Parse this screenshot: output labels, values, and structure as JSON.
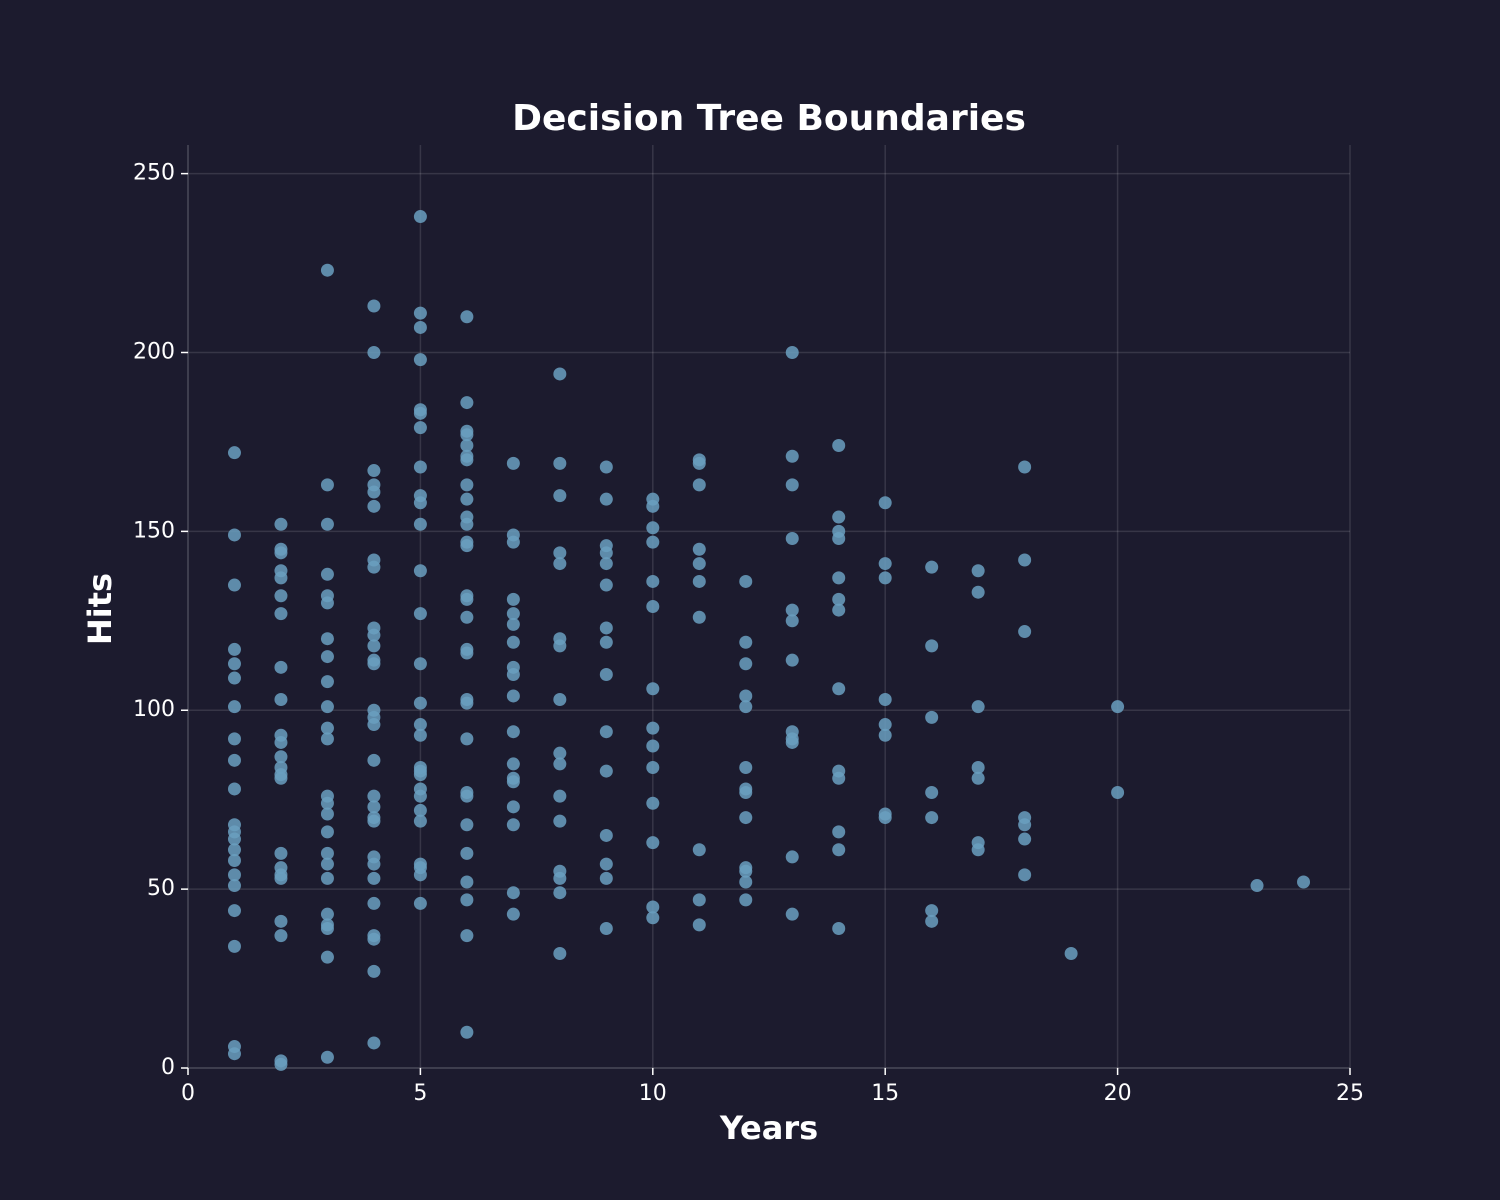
{
  "chart_data": {
    "type": "scatter",
    "title": "Decision Tree Boundaries",
    "x_label": "Years",
    "y_label": "Hits",
    "xlim": [
      0,
      25
    ],
    "ylim": [
      0,
      258
    ],
    "xticks": [
      0,
      5,
      10,
      15,
      20,
      25
    ],
    "yticks": [
      0,
      50,
      100,
      150,
      200,
      250
    ],
    "grid": true,
    "color": "#6a9fc0",
    "x": [
      1,
      1,
      1,
      1,
      1,
      1,
      1,
      1,
      1,
      1,
      1,
      1,
      1,
      1,
      1,
      1,
      1,
      1,
      1,
      1,
      1,
      2,
      2,
      2,
      2,
      2,
      2,
      2,
      2,
      2,
      2,
      2,
      2,
      2,
      2,
      2,
      2,
      2,
      2,
      2,
      2,
      2,
      2,
      2,
      3,
      3,
      3,
      3,
      3,
      3,
      3,
      3,
      3,
      3,
      3,
      3,
      3,
      3,
      3,
      3,
      3,
      3,
      3,
      3,
      3,
      3,
      3,
      3,
      4,
      4,
      4,
      4,
      4,
      4,
      4,
      4,
      4,
      4,
      4,
      4,
      4,
      4,
      4,
      4,
      4,
      4,
      4,
      4,
      4,
      4,
      4,
      4,
      4,
      4,
      4,
      4,
      4,
      5,
      5,
      5,
      5,
      5,
      5,
      5,
      5,
      5,
      5,
      5,
      5,
      5,
      5,
      5,
      5,
      5,
      5,
      5,
      5,
      5,
      5,
      5,
      5,
      5,
      5,
      5,
      5,
      6,
      6,
      6,
      6,
      6,
      6,
      6,
      6,
      6,
      6,
      6,
      6,
      6,
      6,
      6,
      6,
      6,
      6,
      6,
      6,
      6,
      6,
      6,
      6,
      6,
      6,
      6,
      6,
      6,
      7,
      7,
      7,
      7,
      7,
      7,
      7,
      7,
      7,
      7,
      7,
      7,
      7,
      7,
      7,
      7,
      7,
      7,
      8,
      8,
      8,
      8,
      8,
      8,
      8,
      8,
      8,
      8,
      8,
      8,
      8,
      8,
      8,
      8,
      9,
      9,
      9,
      9,
      9,
      9,
      9,
      9,
      9,
      9,
      9,
      9,
      9,
      9,
      9,
      10,
      10,
      10,
      10,
      10,
      10,
      10,
      10,
      10,
      10,
      10,
      10,
      10,
      10,
      11,
      11,
      11,
      11,
      11,
      11,
      11,
      11,
      11,
      11,
      12,
      12,
      12,
      12,
      12,
      12,
      12,
      12,
      12,
      12,
      12,
      12,
      12,
      13,
      13,
      13,
      13,
      13,
      13,
      13,
      13,
      13,
      13,
      13,
      13,
      14,
      14,
      14,
      14,
      14,
      14,
      14,
      14,
      14,
      14,
      14,
      14,
      14,
      15,
      15,
      15,
      15,
      15,
      15,
      15,
      15,
      16,
      16,
      16,
      16,
      16,
      16,
      16,
      17,
      17,
      17,
      17,
      17,
      17,
      17,
      18,
      18,
      18,
      18,
      18,
      18,
      18,
      19,
      20,
      20,
      23,
      24
    ],
    "values": [
      172,
      149,
      135,
      117,
      113,
      109,
      101,
      92,
      86,
      78,
      68,
      66,
      64,
      61,
      58,
      54,
      51,
      44,
      34,
      6,
      4,
      152,
      145,
      144,
      139,
      137,
      132,
      127,
      112,
      103,
      93,
      91,
      87,
      84,
      82,
      81,
      60,
      56,
      54,
      53,
      41,
      37,
      2,
      1,
      223,
      163,
      152,
      138,
      132,
      130,
      120,
      115,
      108,
      101,
      95,
      92,
      76,
      74,
      71,
      66,
      60,
      57,
      53,
      43,
      40,
      39,
      31,
      3,
      213,
      200,
      167,
      163,
      161,
      157,
      142,
      140,
      123,
      121,
      118,
      114,
      113,
      100,
      98,
      96,
      86,
      76,
      73,
      70,
      69,
      59,
      57,
      53,
      46,
      37,
      36,
      27,
      7,
      238,
      211,
      207,
      198,
      184,
      183,
      179,
      168,
      160,
      158,
      152,
      139,
      127,
      113,
      102,
      96,
      93,
      84,
      83,
      82,
      78,
      76,
      72,
      69,
      57,
      56,
      54,
      46,
      210,
      186,
      178,
      177,
      174,
      171,
      170,
      163,
      159,
      154,
      152,
      147,
      146,
      132,
      131,
      126,
      117,
      116,
      103,
      102,
      92,
      77,
      76,
      68,
      60,
      52,
      47,
      37,
      10,
      169,
      149,
      147,
      131,
      127,
      124,
      119,
      112,
      110,
      104,
      94,
      85,
      81,
      80,
      73,
      68,
      49,
      43,
      194,
      169,
      160,
      144,
      141,
      120,
      118,
      103,
      88,
      85,
      76,
      69,
      55,
      53,
      49,
      32,
      168,
      159,
      146,
      144,
      141,
      135,
      123,
      119,
      110,
      94,
      83,
      65,
      57,
      53,
      39,
      159,
      157,
      151,
      147,
      136,
      129,
      106,
      95,
      90,
      84,
      74,
      63,
      45,
      42,
      170,
      169,
      163,
      145,
      141,
      136,
      126,
      61,
      47,
      40,
      136,
      119,
      113,
      104,
      101,
      84,
      78,
      77,
      70,
      56,
      55,
      52,
      47,
      200,
      171,
      163,
      148,
      128,
      125,
      114,
      94,
      92,
      91,
      59,
      43,
      174,
      154,
      150,
      148,
      137,
      131,
      128,
      106,
      83,
      81,
      66,
      61,
      39,
      158,
      141,
      137,
      103,
      96,
      93,
      71,
      70,
      140,
      118,
      98,
      77,
      70,
      44,
      41,
      139,
      133,
      101,
      84,
      81,
      63,
      61,
      168,
      142,
      122,
      70,
      68,
      64,
      54,
      32,
      101,
      77,
      51,
      52
    ]
  }
}
